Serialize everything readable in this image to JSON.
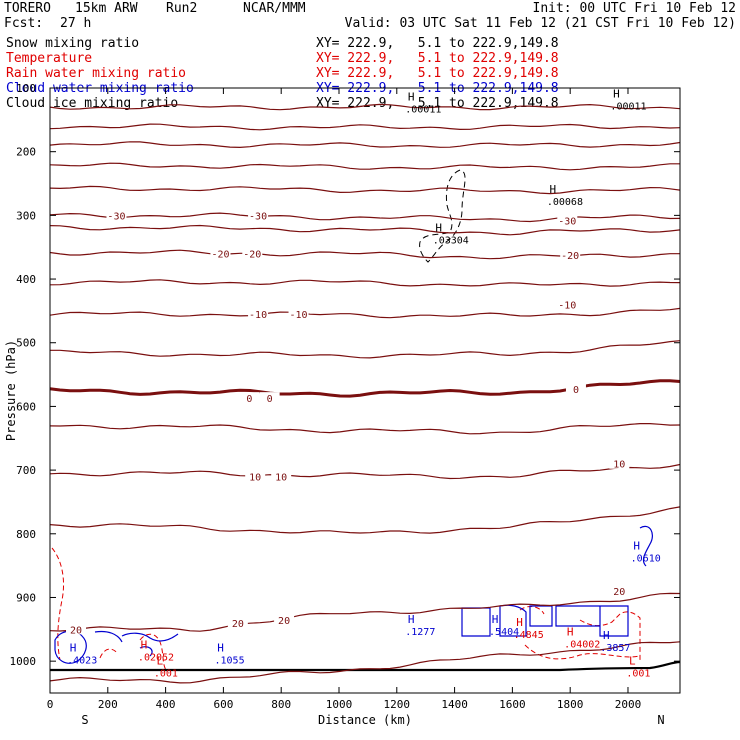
{
  "header": {
    "model": "TORERO",
    "resolution": "15km ARW",
    "run": "Run2",
    "org": "NCAR/MMM",
    "init": "Init: 00 UTC Fri 10 Feb 12",
    "fcst_label": "Fcst:",
    "fcst_value": "27 h",
    "valid": "Valid: 03 UTC Sat 11 Feb 12 (21 CST Fri 10 Feb 12)"
  },
  "legend": [
    {
      "name": "Snow mixing ratio",
      "xy": "XY= 222.9,   5.1 to 222.9,149.8",
      "color": "#000000"
    },
    {
      "name": "Temperature",
      "xy": "XY= 222.9,   5.1 to 222.9,149.8",
      "color": "#e00000"
    },
    {
      "name": "Rain water mixing ratio",
      "xy": "XY= 222.9,   5.1 to 222.9,149.8",
      "color": "#e00000"
    },
    {
      "name": "Cloud water mixing ratio",
      "xy": "XY= 222.9,   5.1 to 222.9,149.8",
      "color": "#0000d0"
    },
    {
      "name": "Cloud ice mixing ratio",
      "xy": "XY= 222.9,   5.1 to 222.9,149.8",
      "color": "#000000"
    }
  ],
  "chart_data": {
    "type": "cross-section-contour",
    "xlabel": "Distance (km)",
    "ylabel": "Pressure (hPa)",
    "xlim": [
      0,
      2180
    ],
    "ylim": [
      1050,
      100
    ],
    "xticks": [
      "0",
      "200",
      "400",
      "600",
      "800",
      "1000",
      "1200",
      "1400",
      "1600",
      "1800",
      "2000"
    ],
    "xtick_values": [
      0,
      200,
      400,
      600,
      800,
      1000,
      1200,
      1400,
      1600,
      1800,
      2000
    ],
    "yticks": [
      "100",
      "200",
      "300",
      "400",
      "500",
      "600",
      "700",
      "800",
      "900",
      "1000"
    ],
    "ytick_values": [
      100,
      200,
      300,
      400,
      500,
      600,
      700,
      800,
      900,
      1000
    ],
    "left_end": "S",
    "right_end": "N",
    "temperature_contour_interval": 5,
    "temperature_levels": [
      {
        "temp": -55,
        "p": [
          130,
          130,
          130,
          130,
          130
        ]
      },
      {
        "temp": -50,
        "p": [
          160,
          161,
          162,
          161,
          160
        ]
      },
      {
        "temp": -45,
        "p": [
          188,
          189,
          190,
          190,
          188
        ]
      },
      {
        "temp": -40,
        "p": [
          222,
          222,
          224,
          225,
          223
        ]
      },
      {
        "temp": -35,
        "p": [
          258,
          258,
          260,
          262,
          260
        ]
      },
      {
        "temp": -30,
        "p": [
          300,
          300,
          303,
          306,
          302
        ]
      },
      {
        "temp": -25,
        "p": [
          318,
          320,
          322,
          327,
          322
        ]
      },
      {
        "temp": -20,
        "p": [
          358,
          359,
          360,
          366,
          360
        ]
      },
      {
        "temp": -15,
        "p": [
          405,
          405,
          405,
          410,
          405
        ]
      },
      {
        "temp": -10,
        "p": [
          455,
          455,
          456,
          458,
          448
        ]
      },
      {
        "temp": -5,
        "p": [
          515,
          518,
          520,
          518,
          500
        ]
      },
      {
        "temp": 0,
        "p": [
          575,
          578,
          580,
          578,
          560
        ]
      },
      {
        "temp": 5,
        "p": [
          630,
          632,
          638,
          640,
          625
        ]
      },
      {
        "temp": 10,
        "p": [
          705,
          705,
          708,
          710,
          690
        ]
      },
      {
        "temp": 15,
        "p": [
          785,
          790,
          800,
          790,
          760
        ]
      },
      {
        "temp": 20,
        "p": [
          950,
          950,
          925,
          915,
          895
        ]
      },
      {
        "temp": 25,
        "p": [
          1030,
          1030,
          1015,
          990,
          970
        ]
      }
    ],
    "temperature_level_x": [
      0,
      500,
      1000,
      1600,
      2180
    ],
    "temperature_labels": [
      {
        "text": "-30",
        "x": 230,
        "p": 300
      },
      {
        "text": "-30",
        "x": 720,
        "p": 300
      },
      {
        "text": "-30",
        "x": 1790,
        "p": 308
      },
      {
        "text": "-20",
        "x": 590,
        "p": 360
      },
      {
        "text": "-20",
        "x": 700,
        "p": 360
      },
      {
        "text": "-20",
        "x": 1800,
        "p": 362
      },
      {
        "text": "-10",
        "x": 720,
        "p": 455
      },
      {
        "text": "-10",
        "x": 860,
        "p": 455
      },
      {
        "text": "-10",
        "x": 1790,
        "p": 440
      },
      {
        "text": "0",
        "x": 690,
        "p": 587
      },
      {
        "text": "0",
        "x": 760,
        "p": 587
      },
      {
        "text": "0",
        "x": 1820,
        "p": 573
      },
      {
        "text": "10",
        "x": 710,
        "p": 710
      },
      {
        "text": "10",
        "x": 800,
        "p": 710
      },
      {
        "text": "10",
        "x": 1970,
        "p": 690
      },
      {
        "text": "20",
        "x": 650,
        "p": 940
      },
      {
        "text": "20",
        "x": 810,
        "p": 935
      },
      {
        "text": "20",
        "x": 1970,
        "p": 890
      },
      {
        "text": "20",
        "x": 90,
        "p": 950
      }
    ],
    "extrema_labels": [
      {
        "symbol": "H",
        "value": ".00011",
        "x": 1250,
        "p": 120,
        "color": "#000000"
      },
      {
        "symbol": "H",
        "value": ".00011",
        "x": 1960,
        "p": 115,
        "color": "#000000"
      },
      {
        "symbol": "H",
        "value": ".00068",
        "x": 1740,
        "p": 265,
        "color": "#000000"
      },
      {
        "symbol": "H",
        "value": ".03304",
        "x": 1345,
        "p": 325,
        "color": "#000000"
      },
      {
        "symbol": "H",
        "value": ".0610",
        "x": 2030,
        "p": 825,
        "color": "#0000d0"
      },
      {
        "symbol": "H",
        "value": ".1277",
        "x": 1250,
        "p": 940,
        "color": "#0000d0"
      },
      {
        "symbol": "H",
        "value": ".5404",
        "x": 1540,
        "p": 940,
        "color": "#0000d0"
      },
      {
        "symbol": "H",
        "value": ".4845",
        "x": 1625,
        "p": 945,
        "color": "#e00000"
      },
      {
        "symbol": "H",
        "value": ".04002",
        "x": 1800,
        "p": 960,
        "color": "#e00000"
      },
      {
        "symbol": "H",
        "value": ".3857",
        "x": 1925,
        "p": 965,
        "color": "#0000d0"
      },
      {
        "symbol": "H",
        "value": ".4023",
        "x": 80,
        "p": 985,
        "color": "#0000d0"
      },
      {
        "symbol": "H",
        "value": ".02052",
        "x": 325,
        "p": 980,
        "color": "#e00000"
      },
      {
        "symbol": "H",
        "value": ".1055",
        "x": 590,
        "p": 985,
        "color": "#0000d0"
      },
      {
        "symbol": "L",
        "value": ".001",
        "x": 2015,
        "p": 1005,
        "color": "#e00000"
      },
      {
        "symbol": "L",
        "value": ".001",
        "x": 380,
        "p": 1005,
        "color": "#e00000"
      }
    ]
  }
}
